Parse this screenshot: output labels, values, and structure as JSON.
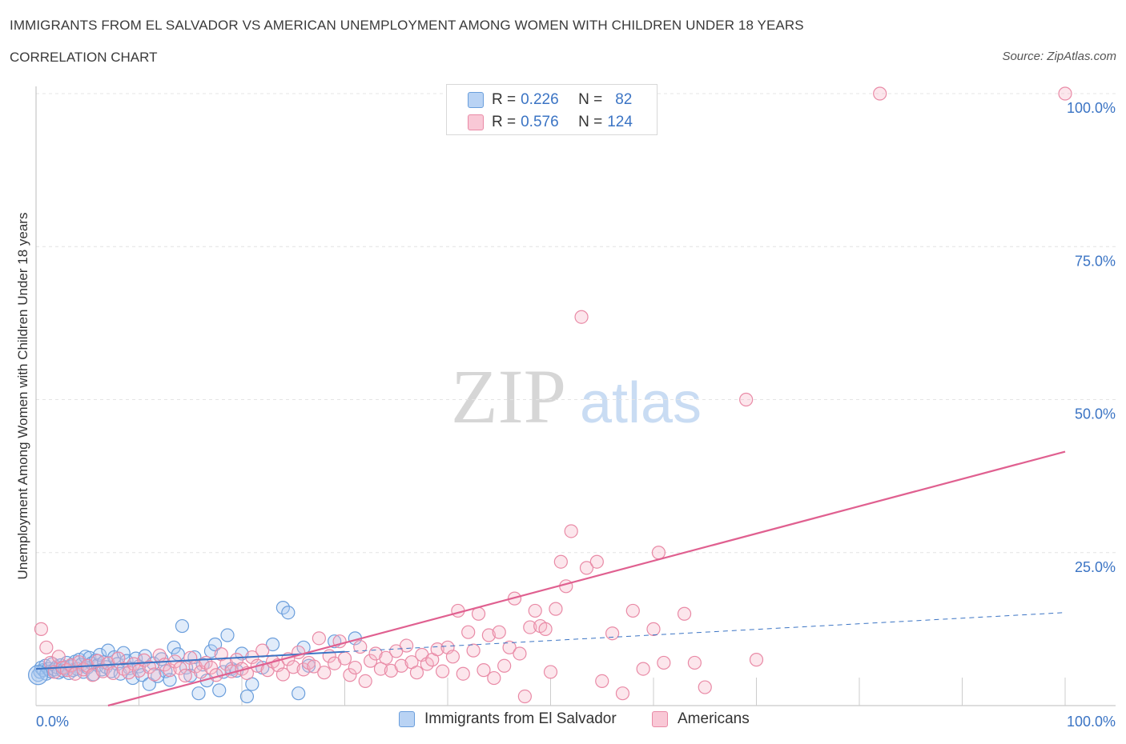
{
  "title": "IMMIGRANTS FROM EL SALVADOR VS AMERICAN UNEMPLOYMENT AMONG WOMEN WITH CHILDREN UNDER 18 YEARS",
  "subtitle": "CORRELATION CHART",
  "source": "Source: ZipAtlas.com",
  "watermark": {
    "zip": "ZIP",
    "atlas": "atlas"
  },
  "legend_top": {
    "r_label": "R =",
    "n_label": "N =",
    "rows": [
      {
        "r": "0.226",
        "n": "82"
      },
      {
        "r": "0.576",
        "n": "124"
      }
    ]
  },
  "legend_bottom": [
    "Immigrants from El Salvador",
    "Americans"
  ],
  "colors": {
    "blue_fill": "#a9c8f0",
    "blue_stroke": "#6a9edc",
    "blue_line": "#3b74c4",
    "pink_fill": "#f5b8c9",
    "pink_stroke": "#e98aa6",
    "pink_line": "#e06090",
    "grid": "#e4e4e4",
    "axis_text": "#3b74c4"
  },
  "chart_data": {
    "type": "scatter",
    "xlabel": "",
    "ylabel": "Unemployment Among Women with Children Under 18 years",
    "xlim": [
      0,
      100
    ],
    "ylim": [
      0,
      100
    ],
    "x_ticks": [
      "0.0%",
      "100.0%"
    ],
    "y_ticks": [
      {
        "value": 100,
        "label": "100.0%"
      },
      {
        "value": 75,
        "label": "75.0%"
      },
      {
        "value": 50,
        "label": "50.0%"
      },
      {
        "value": 25,
        "label": "25.0%"
      }
    ],
    "grid": true,
    "series": [
      {
        "name": "Immigrants from El Salvador",
        "color": "blue",
        "trend": {
          "x0": 0,
          "y0": 6.0,
          "x1": 30,
          "y1": 8.8,
          "dash_to_x": 100,
          "dash_to_y": 15.2
        },
        "points": [
          [
            0.2,
            5.0
          ],
          [
            0.4,
            5.5
          ],
          [
            0.5,
            6.2
          ],
          [
            0.7,
            5.8
          ],
          [
            0.9,
            6.5
          ],
          [
            1.0,
            5.2
          ],
          [
            1.2,
            6.0
          ],
          [
            1.4,
            5.6
          ],
          [
            1.6,
            6.8
          ],
          [
            1.8,
            5.9
          ],
          [
            2.0,
            6.3
          ],
          [
            2.2,
            5.4
          ],
          [
            2.4,
            6.6
          ],
          [
            2.6,
            5.7
          ],
          [
            2.8,
            6.1
          ],
          [
            3.0,
            7.0
          ],
          [
            3.2,
            5.3
          ],
          [
            3.4,
            6.4
          ],
          [
            3.6,
            5.8
          ],
          [
            3.8,
            7.2
          ],
          [
            4.0,
            6.0
          ],
          [
            4.2,
            7.5
          ],
          [
            4.4,
            6.7
          ],
          [
            4.6,
            5.5
          ],
          [
            4.8,
            8.0
          ],
          [
            5.0,
            6.2
          ],
          [
            5.2,
            7.8
          ],
          [
            5.4,
            6.9
          ],
          [
            5.6,
            5.1
          ],
          [
            5.8,
            7.4
          ],
          [
            6.0,
            6.6
          ],
          [
            6.2,
            8.3
          ],
          [
            6.4,
            5.9
          ],
          [
            6.6,
            7.1
          ],
          [
            6.8,
            6.3
          ],
          [
            7.0,
            9.0
          ],
          [
            7.3,
            5.6
          ],
          [
            7.6,
            7.9
          ],
          [
            7.9,
            6.8
          ],
          [
            8.2,
            5.2
          ],
          [
            8.5,
            8.6
          ],
          [
            8.8,
            7.3
          ],
          [
            9.1,
            6.1
          ],
          [
            9.4,
            4.5
          ],
          [
            9.7,
            7.7
          ],
          [
            10.0,
            6.4
          ],
          [
            10.3,
            5.0
          ],
          [
            10.6,
            8.1
          ],
          [
            11.0,
            3.5
          ],
          [
            11.4,
            6.9
          ],
          [
            11.8,
            4.8
          ],
          [
            12.2,
            7.6
          ],
          [
            12.6,
            5.6
          ],
          [
            13.0,
            4.2
          ],
          [
            13.4,
            9.5
          ],
          [
            13.8,
            8.4
          ],
          [
            14.2,
            13.0
          ],
          [
            14.6,
            6.2
          ],
          [
            15.0,
            4.9
          ],
          [
            15.4,
            7.9
          ],
          [
            15.8,
            2.0
          ],
          [
            16.2,
            6.7
          ],
          [
            16.6,
            4.1
          ],
          [
            17.0,
            8.9
          ],
          [
            17.4,
            10.0
          ],
          [
            17.8,
            2.5
          ],
          [
            18.2,
            5.5
          ],
          [
            18.6,
            11.5
          ],
          [
            19.0,
            6.0
          ],
          [
            19.5,
            5.7
          ],
          [
            20.0,
            8.5
          ],
          [
            20.5,
            1.5
          ],
          [
            21.0,
            3.5
          ],
          [
            22.0,
            6.2
          ],
          [
            23.0,
            10.0
          ],
          [
            24.0,
            16.0
          ],
          [
            24.5,
            15.2
          ],
          [
            25.5,
            2.0
          ],
          [
            26.0,
            9.5
          ],
          [
            26.5,
            6.5
          ],
          [
            29.0,
            10.5
          ],
          [
            31.0,
            11.0
          ]
        ]
      },
      {
        "name": "Americans",
        "color": "pink",
        "trend": {
          "x0": 7,
          "y0": 0.0,
          "x1": 100,
          "y1": 41.5
        },
        "points": [
          [
            0.5,
            12.5
          ],
          [
            1.0,
            9.5
          ],
          [
            1.4,
            7.0
          ],
          [
            1.8,
            5.5
          ],
          [
            2.2,
            8.0
          ],
          [
            2.6,
            6.2
          ],
          [
            3.0,
            5.8
          ],
          [
            3.4,
            6.6
          ],
          [
            3.8,
            5.2
          ],
          [
            4.2,
            7.1
          ],
          [
            4.6,
            5.9
          ],
          [
            5.0,
            6.5
          ],
          [
            5.5,
            5.0
          ],
          [
            6.0,
            7.3
          ],
          [
            6.5,
            5.6
          ],
          [
            7.0,
            6.9
          ],
          [
            7.5,
            5.3
          ],
          [
            8.0,
            7.7
          ],
          [
            8.5,
            6.0
          ],
          [
            9.0,
            5.4
          ],
          [
            9.5,
            6.8
          ],
          [
            10.0,
            5.7
          ],
          [
            10.5,
            7.4
          ],
          [
            11.0,
            6.3
          ],
          [
            11.5,
            5.1
          ],
          [
            12.0,
            8.2
          ],
          [
            12.5,
            6.7
          ],
          [
            13.0,
            5.8
          ],
          [
            13.5,
            7.2
          ],
          [
            14.0,
            6.1
          ],
          [
            14.5,
            4.9
          ],
          [
            15.0,
            7.8
          ],
          [
            15.5,
            6.4
          ],
          [
            16.0,
            5.5
          ],
          [
            16.5,
            7.0
          ],
          [
            17.0,
            6.2
          ],
          [
            17.5,
            5.0
          ],
          [
            18.0,
            8.4
          ],
          [
            18.5,
            6.8
          ],
          [
            19.0,
            5.6
          ],
          [
            19.5,
            7.5
          ],
          [
            20.0,
            6.0
          ],
          [
            20.5,
            5.3
          ],
          [
            21.0,
            7.9
          ],
          [
            21.5,
            6.5
          ],
          [
            22.0,
            9.0
          ],
          [
            22.5,
            5.8
          ],
          [
            23.0,
            7.2
          ],
          [
            23.5,
            6.6
          ],
          [
            24.0,
            5.1
          ],
          [
            24.5,
            7.6
          ],
          [
            25.0,
            6.3
          ],
          [
            25.5,
            8.7
          ],
          [
            26.0,
            5.9
          ],
          [
            26.5,
            7.0
          ],
          [
            27.0,
            6.4
          ],
          [
            27.5,
            11.0
          ],
          [
            28.0,
            5.4
          ],
          [
            28.5,
            8.1
          ],
          [
            29.0,
            6.9
          ],
          [
            29.5,
            10.5
          ],
          [
            30.0,
            7.7
          ],
          [
            30.5,
            5.0
          ],
          [
            31.0,
            6.2
          ],
          [
            31.5,
            9.6
          ],
          [
            32.0,
            4.0
          ],
          [
            32.5,
            7.3
          ],
          [
            33.0,
            8.5
          ],
          [
            33.5,
            6.0
          ],
          [
            34.0,
            7.8
          ],
          [
            34.5,
            5.7
          ],
          [
            35.0,
            8.9
          ],
          [
            35.5,
            6.5
          ],
          [
            36.0,
            9.8
          ],
          [
            36.5,
            7.1
          ],
          [
            37.0,
            5.4
          ],
          [
            37.5,
            8.3
          ],
          [
            38.0,
            6.8
          ],
          [
            38.5,
            7.5
          ],
          [
            39.0,
            9.2
          ],
          [
            39.5,
            5.6
          ],
          [
            40.0,
            9.5
          ],
          [
            40.5,
            8.0
          ],
          [
            41.0,
            15.5
          ],
          [
            41.5,
            5.2
          ],
          [
            42.0,
            12.0
          ],
          [
            42.5,
            9.0
          ],
          [
            43.0,
            15.0
          ],
          [
            43.5,
            5.8
          ],
          [
            44.0,
            11.5
          ],
          [
            44.5,
            4.5
          ],
          [
            45.0,
            12.0
          ],
          [
            45.5,
            6.5
          ],
          [
            46.0,
            9.5
          ],
          [
            46.5,
            17.5
          ],
          [
            47.0,
            8.5
          ],
          [
            47.5,
            1.5
          ],
          [
            48.0,
            12.8
          ],
          [
            48.5,
            15.5
          ],
          [
            49.0,
            13.0
          ],
          [
            49.5,
            12.5
          ],
          [
            50.0,
            5.5
          ],
          [
            50.5,
            15.8
          ],
          [
            51.0,
            23.5
          ],
          [
            51.5,
            19.5
          ],
          [
            52.0,
            28.5
          ],
          [
            53.0,
            63.5
          ],
          [
            53.5,
            22.5
          ],
          [
            54.5,
            23.5
          ],
          [
            55.0,
            4.0
          ],
          [
            56.0,
            11.8
          ],
          [
            57.0,
            2.0
          ],
          [
            58.0,
            15.5
          ],
          [
            59.0,
            6.0
          ],
          [
            60.0,
            12.5
          ],
          [
            60.5,
            25.0
          ],
          [
            61.0,
            7.0
          ],
          [
            63.0,
            15.0
          ],
          [
            64.0,
            7.0
          ],
          [
            65.0,
            3.0
          ],
          [
            69.0,
            50.0
          ],
          [
            70.0,
            7.5
          ],
          [
            82.0,
            100.0
          ],
          [
            100.0,
            100.0
          ]
        ]
      }
    ]
  }
}
